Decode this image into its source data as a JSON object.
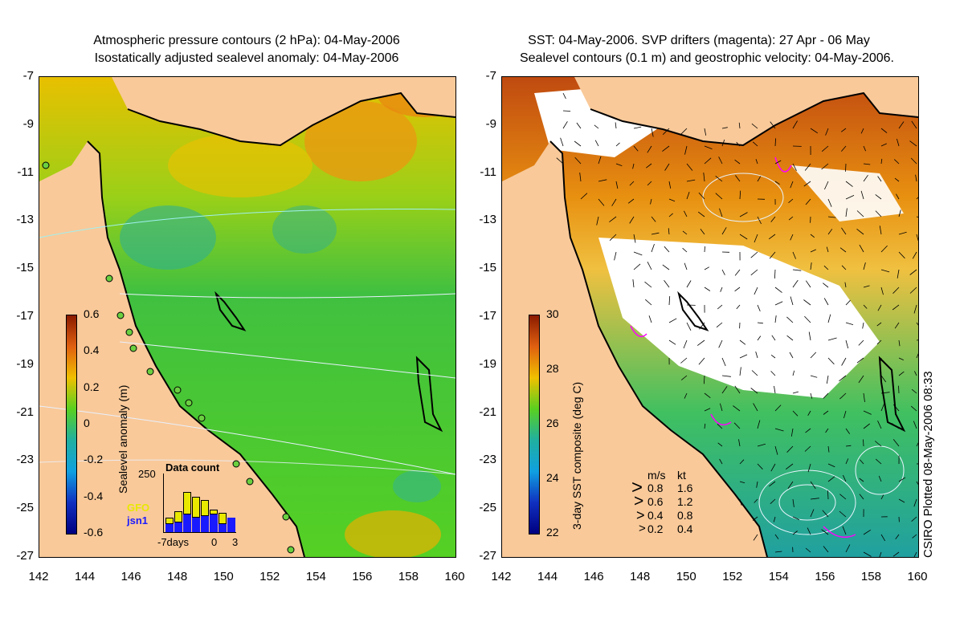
{
  "left": {
    "title_line1": "Atmospheric pressure contours (2 hPa): 04-May-2006",
    "title_line2": "Isostatically adjusted sealevel anomaly: 04-May-2006",
    "colorbar": {
      "label": "Sealevel anomaly (m)",
      "ticks": [
        "0.6",
        "0.4",
        "0.2",
        "0",
        "-0.2",
        "-0.4",
        "-0.6"
      ]
    },
    "inset": {
      "title": "Data count",
      "ymax_label": "250",
      "legend_gfo": "GFO",
      "legend_jsn1": "jsn1",
      "x_labels": [
        "-7days",
        "0",
        "3"
      ],
      "gfo_color": "#e8e800",
      "jsn1_color": "#1a1aff"
    }
  },
  "right": {
    "title_line1": "SST: 04-May-2006. SVP drifters (magenta): 27 Apr - 06 May",
    "title_line2": "Sealevel contours (0.1 m) and geostrophic velocity: 04-May-2006.",
    "colorbar": {
      "label": "3-day SST composite (deg C)",
      "ticks": [
        "30",
        "28",
        "26",
        "24",
        "22"
      ]
    },
    "velocity_legend": {
      "header_ms": "m/s",
      "header_kt": "kt",
      "rows": [
        {
          "ms": "0.8",
          "kt": "1.6"
        },
        {
          "ms": "0.6",
          "kt": "1.2"
        },
        {
          "ms": "0.4",
          "kt": "0.8"
        },
        {
          "ms": "0.2",
          "kt": "0.4"
        }
      ]
    }
  },
  "axes": {
    "yticks": [
      "-7",
      "-9",
      "-11",
      "-13",
      "-15",
      "-17",
      "-19",
      "-21",
      "-23",
      "-25",
      "-27"
    ],
    "xticks": [
      "142",
      "144",
      "146",
      "148",
      "150",
      "152",
      "154",
      "156",
      "158",
      "160"
    ]
  },
  "credit": "CSIRO Plotted 08-May-2006 08:33",
  "colors": {
    "land": "#f9c999",
    "sea_green": "#55d024",
    "sea_yellow": "#f0c000",
    "sea_orange": "#e88a10",
    "sst_warm": "#c04a10",
    "cloud": "#ffffff",
    "pressure_contour": "#d8e8ff",
    "drifter": "#ff00ff"
  }
}
